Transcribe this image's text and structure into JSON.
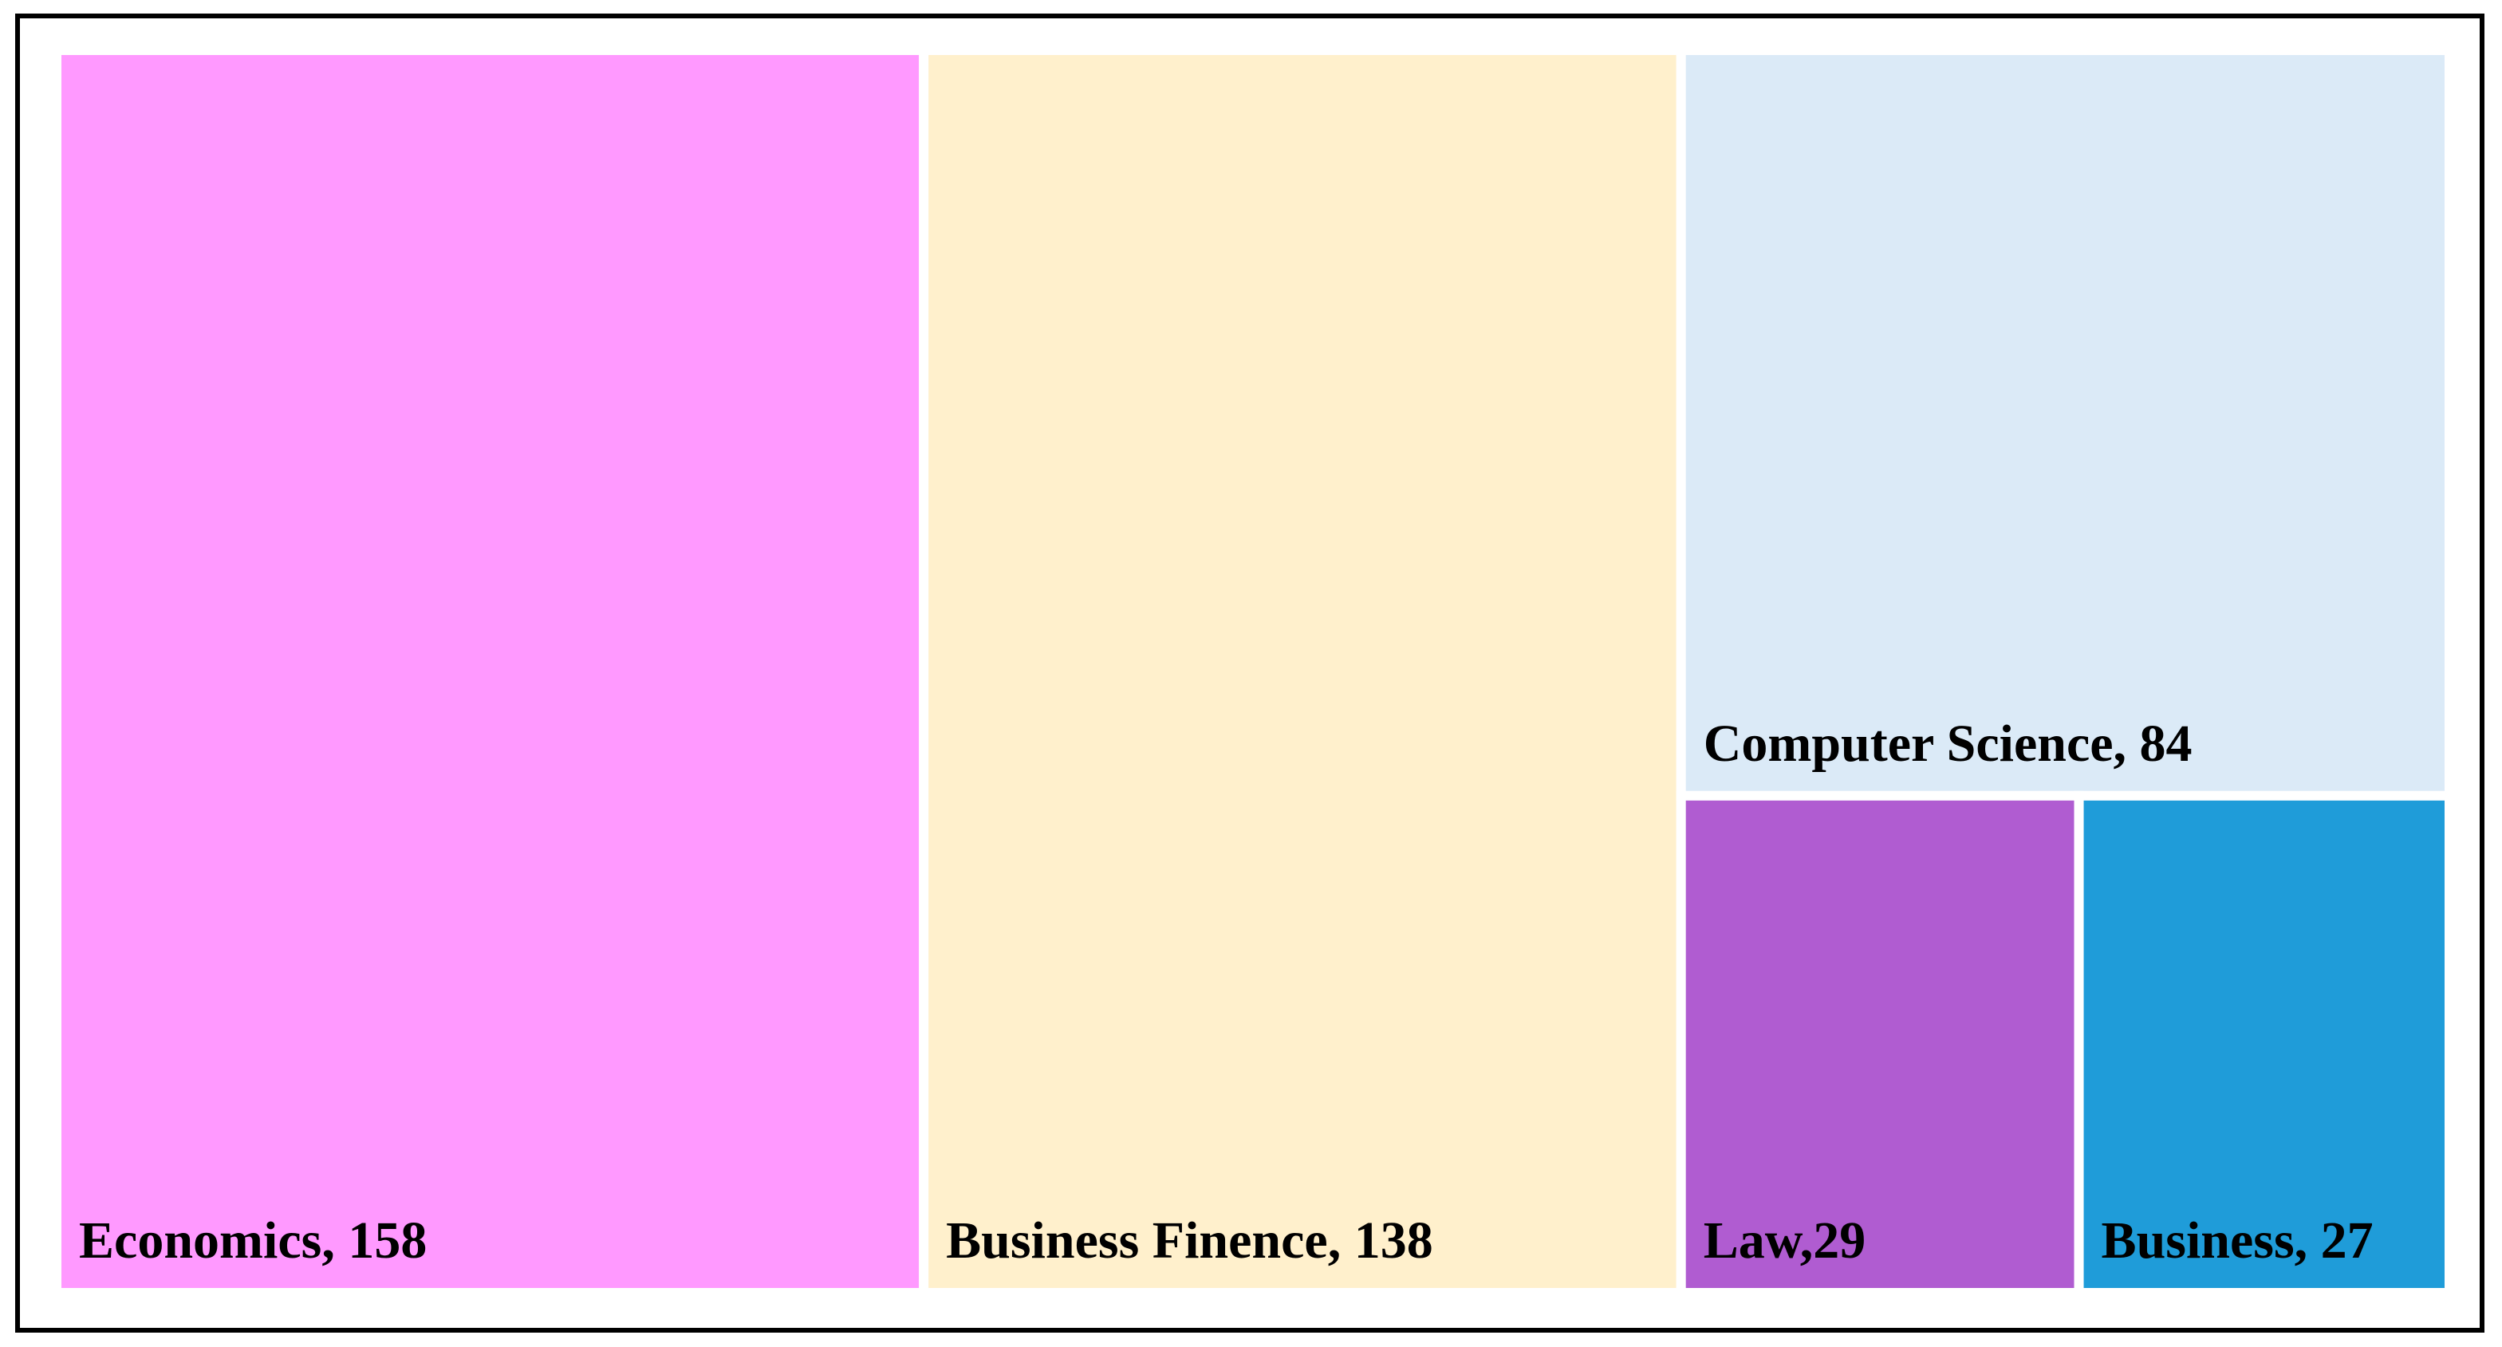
{
  "chart_data": {
    "type": "treemap",
    "values": [
      158,
      138,
      84,
      29,
      27
    ],
    "value_labels": [
      "Economics, 158",
      "Business Finence, 138",
      "Computer Science, 84",
      "Law,29",
      "Business, 27"
    ],
    "colors": [
      "#ff99ff",
      "#fff0cc",
      "#dbeaf7",
      "#b05cd1",
      "#1f9cd9"
    ]
  }
}
